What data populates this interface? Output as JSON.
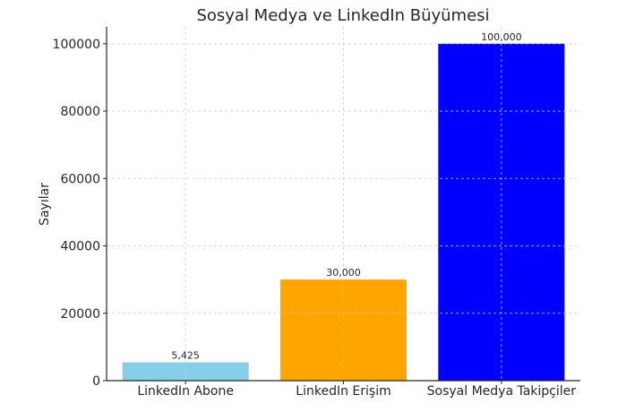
{
  "chart_data": {
    "type": "bar",
    "title": "Sosyal Medya ve LinkedIn Büyümesi",
    "xlabel": "",
    "ylabel": "Sayılar",
    "categories": [
      "LinkedIn Abone",
      "LinkedIn Erişim",
      "Sosyal Medya Takipçiler"
    ],
    "values": [
      5425,
      30000,
      100000
    ],
    "data_labels": [
      "5,425",
      "30,000",
      "100,000"
    ],
    "colors": [
      "#87ceeb",
      "#ffa500",
      "#0000ff"
    ],
    "ylim": [
      0,
      105000
    ],
    "yticks": [
      0,
      20000,
      40000,
      60000,
      80000,
      100000
    ],
    "ytick_labels": [
      "0",
      "20000",
      "40000",
      "60000",
      "80000",
      "100000"
    ],
    "grid": true
  }
}
